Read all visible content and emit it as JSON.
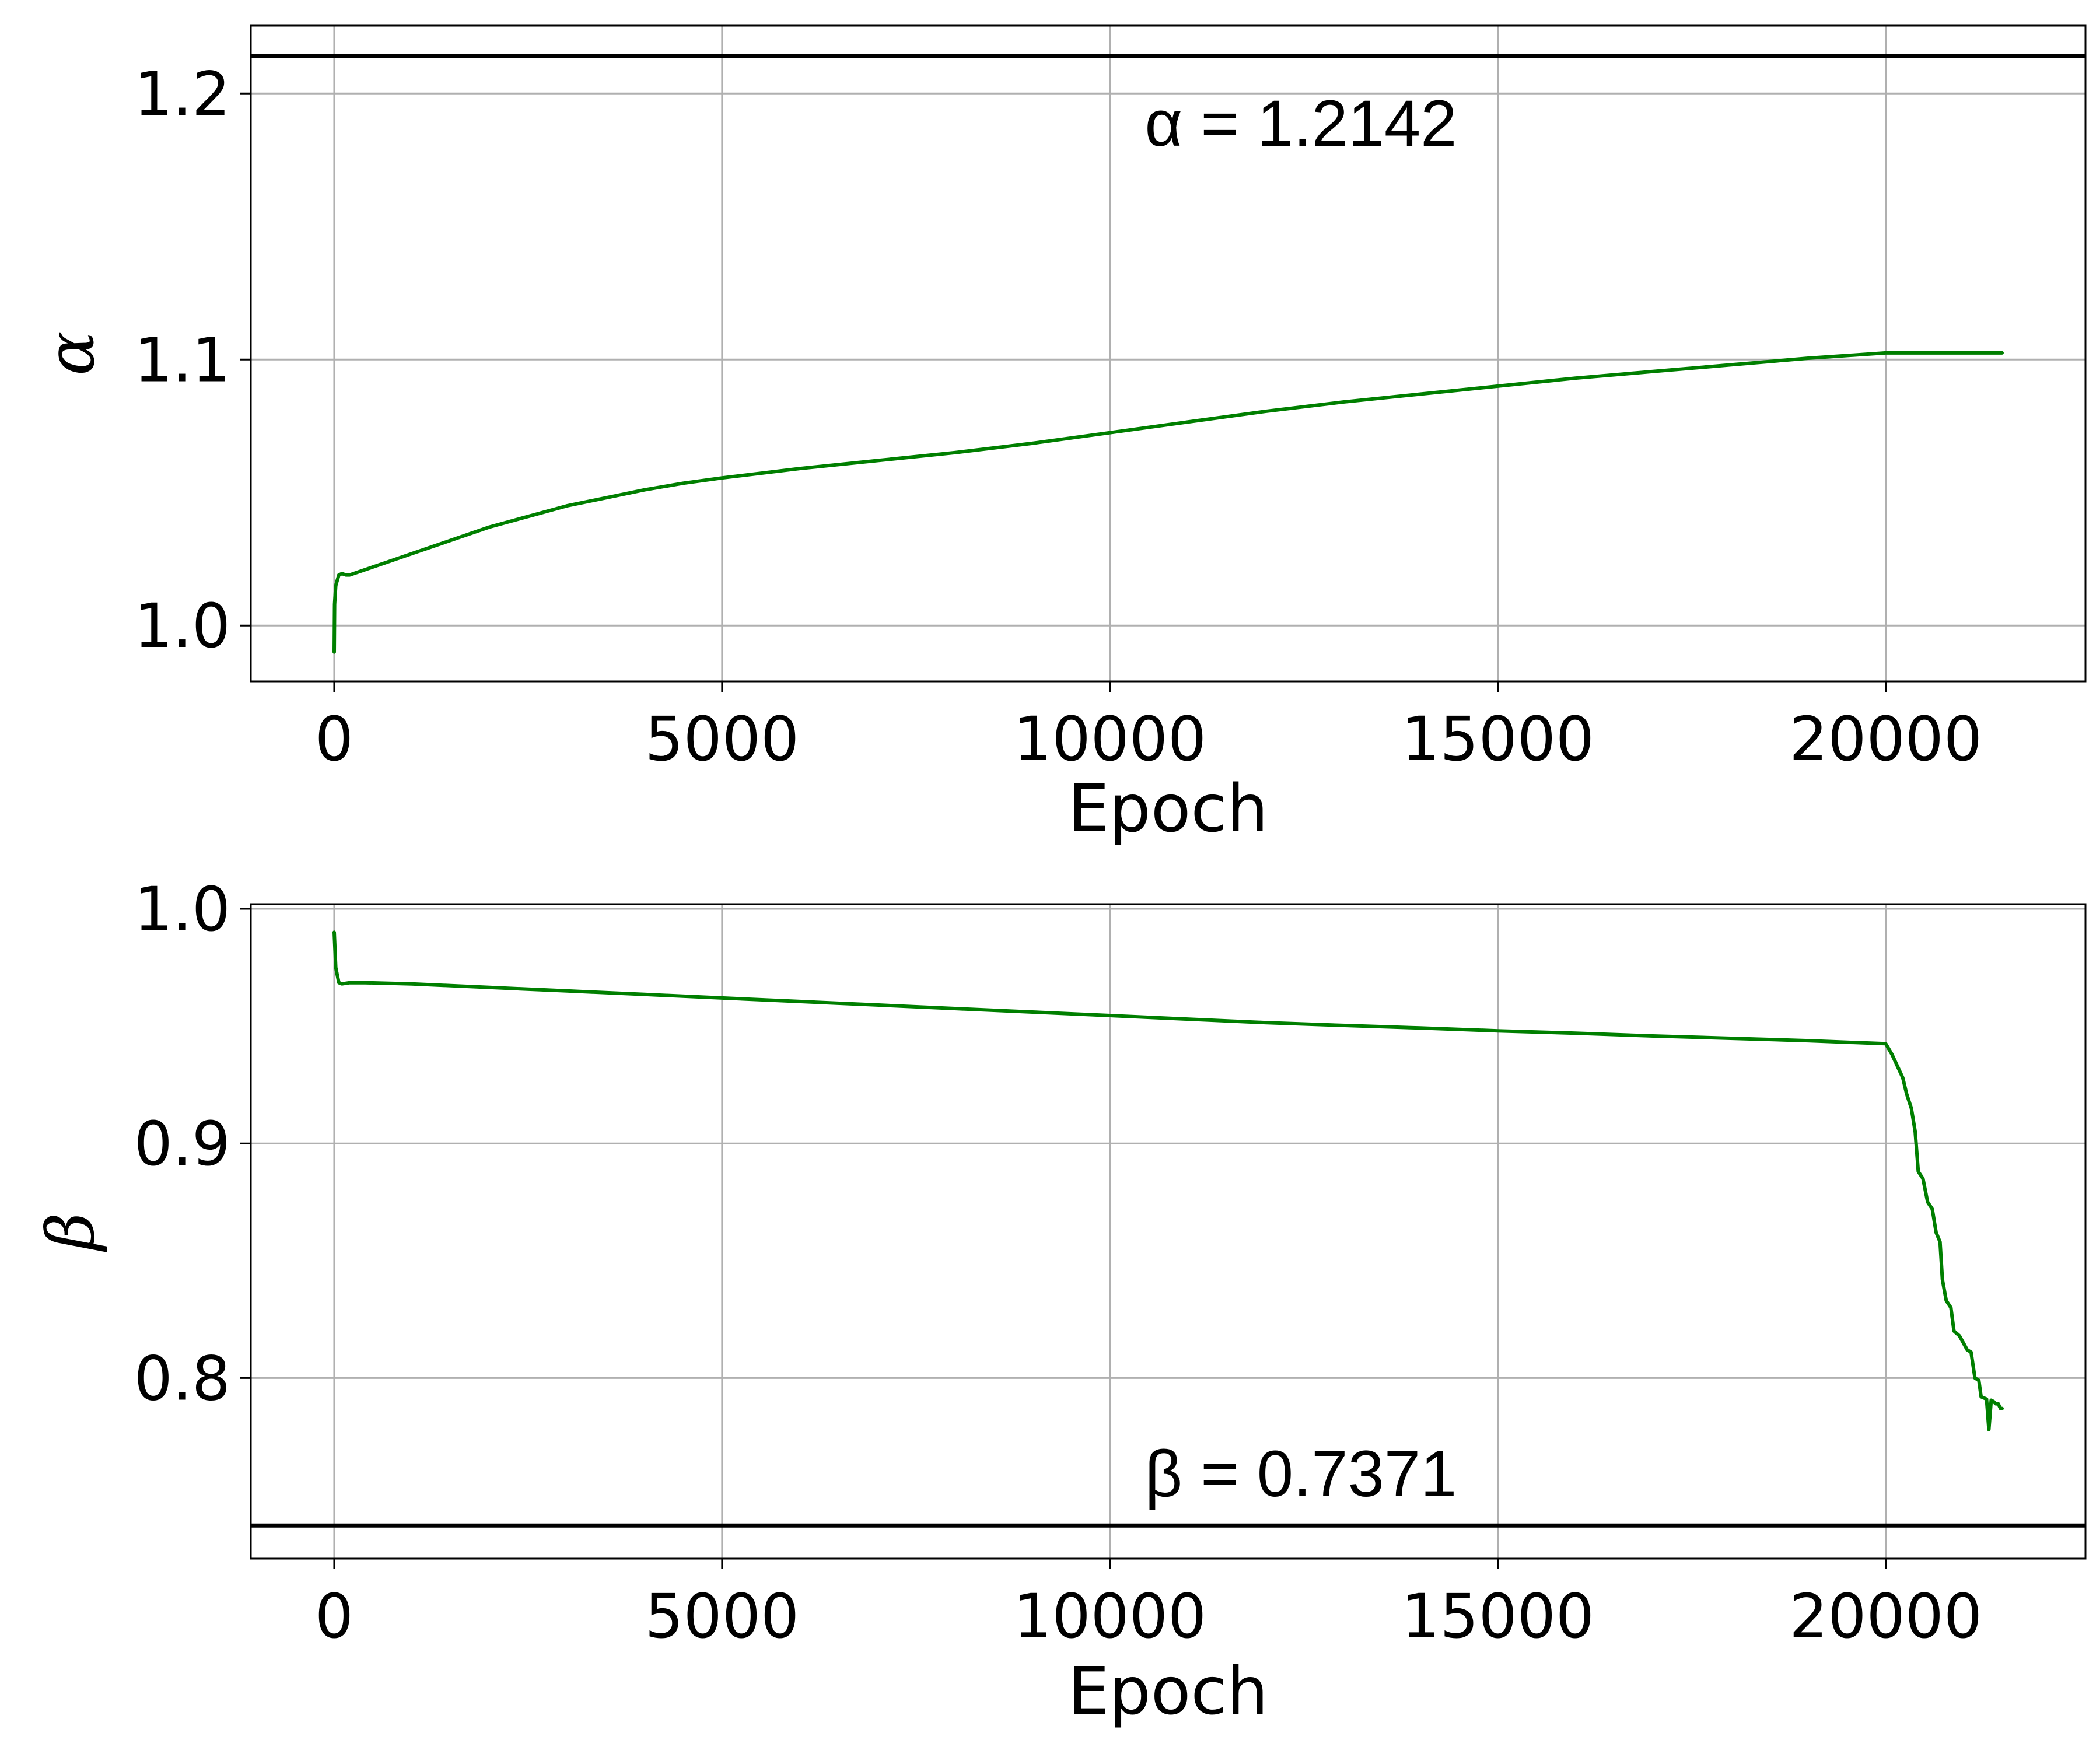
{
  "chart_data": [
    {
      "type": "line",
      "xlabel": "Epoch",
      "ylabel": "α",
      "xlim": [
        -1075,
        22575
      ],
      "ylim": [
        0.979,
        1.2255
      ],
      "xticks": [
        0,
        5000,
        10000,
        15000,
        20000
      ],
      "xtick_labels": [
        "0",
        "5000",
        "10000",
        "15000",
        "20000"
      ],
      "yticks": [
        1.0,
        1.1,
        1.2
      ],
      "ytick_labels": [
        "1.0",
        "1.1",
        "1.2"
      ],
      "grid": true,
      "colors": {
        "series": "#007f00",
        "reference": "#000000"
      },
      "reference_line": {
        "value": 1.2142,
        "label": "α = 1.2142"
      },
      "series": [
        {
          "x": [
            0,
            5,
            20,
            60,
            100,
            150,
            200,
            300,
            500,
            700,
            1000,
            1500,
            2000,
            2500,
            3000,
            3500,
            4000,
            4500,
            5000,
            6000,
            7000,
            8000,
            9000,
            10000,
            11000,
            12000,
            13000,
            14000,
            15000,
            16000,
            17000,
            18000,
            19000,
            20000,
            20500,
            21000,
            21500
          ],
          "y": [
            0.99,
            1.008,
            1.015,
            1.019,
            1.0195,
            1.019,
            1.019,
            1.02,
            1.022,
            1.024,
            1.027,
            1.032,
            1.037,
            1.041,
            1.045,
            1.048,
            1.051,
            1.0535,
            1.0555,
            1.059,
            1.062,
            1.065,
            1.0685,
            1.0725,
            1.0765,
            1.0805,
            1.084,
            1.087,
            1.09,
            1.093,
            1.0955,
            1.098,
            1.1005,
            1.1025,
            1.1025,
            1.1025,
            1.1025
          ]
        }
      ]
    },
    {
      "type": "line",
      "xlabel": "Epoch",
      "ylabel": "β",
      "xlim": [
        -1075,
        22575
      ],
      "ylim": [
        0.723,
        1.002
      ],
      "xticks": [
        0,
        5000,
        10000,
        15000,
        20000
      ],
      "xtick_labels": [
        "0",
        "5000",
        "10000",
        "15000",
        "20000"
      ],
      "yticks": [
        0.8,
        0.9,
        1.0
      ],
      "ytick_labels": [
        "0.8",
        "0.9",
        "1.0"
      ],
      "grid": true,
      "colors": {
        "series": "#007f00",
        "reference": "#000000"
      },
      "reference_line": {
        "value": 0.7371,
        "label": "β = 0.7371"
      },
      "series": [
        {
          "x": [
            0,
            20,
            60,
            100,
            200,
            400,
            1000,
            2000,
            3000,
            4000,
            5000,
            6000,
            7000,
            8000,
            9000,
            10000,
            11000,
            12000,
            13000,
            14000,
            15000,
            16000,
            17000,
            18000,
            19000,
            20000,
            20080,
            20150,
            20220,
            20270,
            20330,
            20380,
            20420,
            20480,
            20540,
            20600,
            20650,
            20700,
            20730,
            20780,
            20840,
            20880,
            20950,
            21000,
            21050,
            21100,
            21150,
            21200,
            21230,
            21300,
            21330,
            21360,
            21390,
            21420,
            21450,
            21480,
            21500
          ],
          "y": [
            0.99,
            0.975,
            0.9685,
            0.968,
            0.9685,
            0.9685,
            0.968,
            0.9665,
            0.965,
            0.9635,
            0.962,
            0.9605,
            0.959,
            0.9575,
            0.956,
            0.9545,
            0.953,
            0.9515,
            0.9503,
            0.9492,
            0.948,
            0.947,
            0.9458,
            0.9448,
            0.9438,
            0.9425,
            0.938,
            0.933,
            0.928,
            0.921,
            0.915,
            0.905,
            0.888,
            0.885,
            0.875,
            0.872,
            0.862,
            0.858,
            0.842,
            0.833,
            0.83,
            0.82,
            0.818,
            0.815,
            0.812,
            0.811,
            0.8,
            0.799,
            0.792,
            0.791,
            0.778,
            0.7905,
            0.79,
            0.789,
            0.789,
            0.787,
            0.787
          ]
        }
      ]
    }
  ]
}
